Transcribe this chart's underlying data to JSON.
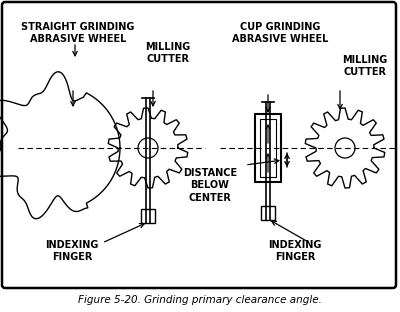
{
  "title": "Figure 5-20. Grinding primary clearance angle.",
  "background_color": "#ffffff",
  "border_color": "#000000",
  "line_color": "#000000",
  "label_straight_grinding": "STRAIGHT GRINDING\nABRASIVE WHEEL",
  "label_cup_grinding": "CUP GRINDING\nABRASIVE WHEEL",
  "label_milling_cutter_left": "MILLING\nCUTTER",
  "label_milling_cutter_right": "MILLING\nCUTTER",
  "label_distance": "DISTANCE\nBELOW\nCENTER",
  "label_indexing_left": "INDEXING\nFINGER",
  "label_indexing_right": "INDEXING\nFINGER",
  "figsize": [
    4.0,
    3.12
  ],
  "dpi": 100
}
